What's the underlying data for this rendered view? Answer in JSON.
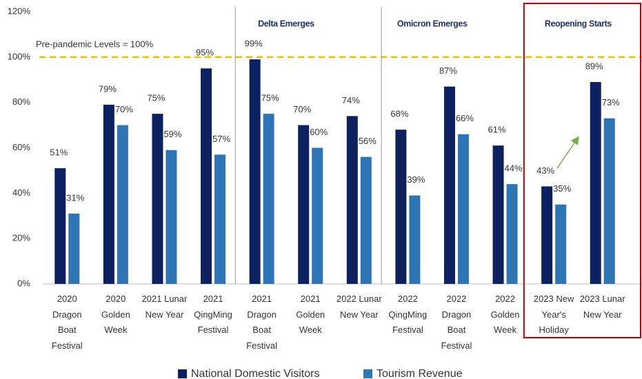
{
  "chart_data": {
    "type": "bar",
    "categories": [
      "2020\nDragon\nBoat\nFestival",
      "2020\nGolden\nWeek",
      "2021 Lunar\nNew Year",
      "2021\nQingMing\nFestival",
      "2021\nDragon\nBoat\nFestival",
      "2021\nGolden\nWeek",
      "2022 Lunar\nNew Year",
      "2022\nQingMing\nFestival",
      "2022\nDragon\nBoat\nFestival",
      "2022\nGolden\nWeek",
      "2023 New\nYear's\nHoliday",
      "2023 Lunar\nNew Year"
    ],
    "series": [
      {
        "name": "National Domestic Visitors",
        "color": "#0d2060",
        "values": [
          51,
          79,
          75,
          95,
          99,
          70,
          74,
          68,
          87,
          61,
          43,
          89
        ],
        "value_labels": [
          "51%",
          "79%",
          "75%",
          "95%",
          "99%",
          "70%",
          "74%",
          "68%",
          "87%",
          "61%",
          "43%",
          "89%"
        ]
      },
      {
        "name": "Tourism Revenue",
        "color": "#2e75b6",
        "values": [
          31,
          70,
          59,
          57,
          75,
          60,
          56,
          39,
          66,
          44,
          35,
          73
        ],
        "value_labels": [
          "31%",
          "70%",
          "59%",
          "57%",
          "75%",
          "60%",
          "56%",
          "39%",
          "66%",
          "44%",
          "35%",
          "73%"
        ]
      }
    ],
    "ylim": [
      0,
      120
    ],
    "yticks": [
      {
        "value": 0,
        "label": "0%"
      },
      {
        "value": 20,
        "label": "20%"
      },
      {
        "value": 40,
        "label": "40%"
      },
      {
        "value": 60,
        "label": "60%"
      },
      {
        "value": 80,
        "label": "80%"
      },
      {
        "value": 100,
        "label": "100%"
      },
      {
        "value": 120,
        "label": "120%"
      }
    ],
    "reference_line": {
      "value": 100,
      "label": "Pre-pandemic Levels = 100%",
      "color": "#f5b800"
    },
    "sections": [
      "Delta Emerges",
      "Omicron Emerges",
      "Reopening Starts"
    ],
    "highlight_color": "#c00000",
    "grid": false,
    "legend": "bottom"
  }
}
